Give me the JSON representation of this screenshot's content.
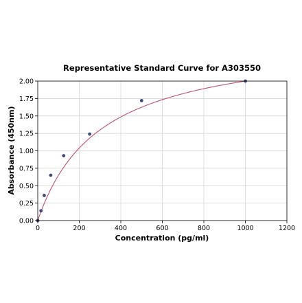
{
  "chart_data": {
    "type": "scatter",
    "title": "Representative Standard Curve for A303550",
    "xlabel": "Concentration (pg/ml)",
    "ylabel": "Absorbance (450nm)",
    "xlim": [
      0,
      1200
    ],
    "ylim": [
      0,
      2.0
    ],
    "xticks": [
      "0",
      "200",
      "400",
      "600",
      "800",
      "1000",
      "1200"
    ],
    "yticks": [
      "0.00",
      "0.25",
      "0.50",
      "0.75",
      "1.00",
      "1.25",
      "1.50",
      "1.75",
      "2.00"
    ],
    "grid": true,
    "legend": "none",
    "series": [
      {
        "x": [
          0,
          15.6,
          31.25,
          62.5,
          125,
          250,
          500,
          1000
        ],
        "y": [
          0.0,
          0.14,
          0.36,
          0.65,
          0.93,
          1.24,
          1.72,
          2.0
        ],
        "marker_color": "#3b4a78"
      }
    ],
    "fit_curve": {
      "model": "hyperbolic",
      "a": 2.6,
      "b": 300,
      "color": "#c0506a"
    }
  }
}
